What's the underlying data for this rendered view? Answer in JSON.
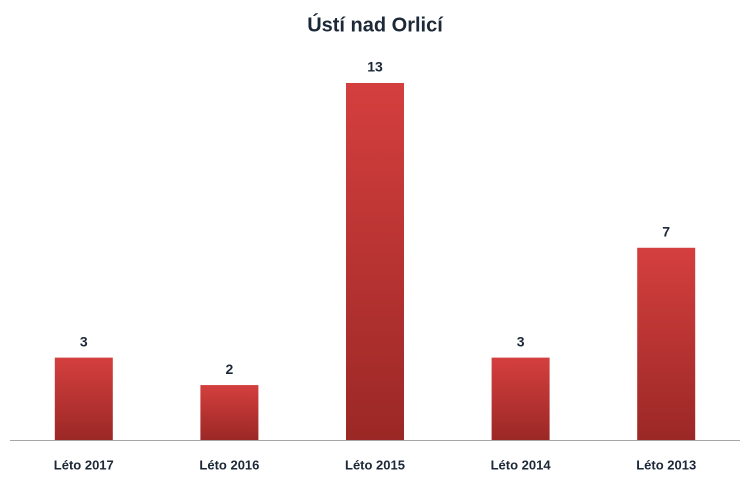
{
  "chart_data": {
    "type": "bar",
    "title": "Ústí nad Orlicí",
    "categories": [
      "Léto 2017",
      "Léto 2016",
      "Léto 2015",
      "Léto 2014",
      "Léto 2013"
    ],
    "values": [
      3,
      2,
      13,
      3,
      7
    ],
    "color": "#d43f3e",
    "ylim": [
      0,
      13
    ]
  }
}
